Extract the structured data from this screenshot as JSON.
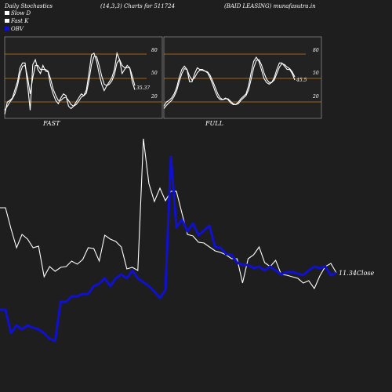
{
  "header": {
    "left": "Daily Stochastics",
    "mid": "(14,3,3) Charts for 511724",
    "right": "(BAID LEASING) munafasutra.in"
  },
  "legend": [
    {
      "label": "Slow  D",
      "color": "#ffffff"
    },
    {
      "label": "Fast K",
      "color": "#ffffff"
    },
    {
      "label": "OBV",
      "color": "#1010d0"
    }
  ],
  "panels": {
    "fast": {
      "label": "FAST",
      "value_label": "35.37"
    },
    "full": {
      "label": "FULL",
      "value_label": "45.5"
    }
  },
  "main": {
    "close_label": "11.34Close"
  },
  "colors": {
    "background": "#1e1e1e",
    "panel_bg": "#222222",
    "level_line": "#c87a14",
    "price_line": "#ffffff",
    "obv_line": "#1010d0"
  },
  "chart_data": [
    {
      "type": "line",
      "name": "FAST",
      "ylim": [
        0,
        100
      ],
      "yticks": [
        20,
        50,
        80
      ],
      "series": [
        {
          "name": "Fast K",
          "values": [
            5,
            20,
            22,
            25,
            35,
            45,
            62,
            68,
            68,
            40,
            10,
            66,
            72,
            60,
            55,
            65,
            58,
            57,
            40,
            30,
            22,
            18,
            25,
            30,
            28,
            15,
            12,
            15,
            20,
            25,
            30,
            28,
            35,
            55,
            78,
            80,
            70,
            55,
            42,
            34,
            40,
            45,
            50,
            60,
            80,
            72,
            55,
            60,
            65,
            62,
            45,
            35
          ]
        },
        {
          "name": "Slow D",
          "values": [
            10,
            15,
            20,
            24,
            30,
            40,
            55,
            64,
            65,
            50,
            30,
            50,
            65,
            65,
            60,
            60,
            60,
            58,
            48,
            36,
            28,
            22,
            22,
            25,
            26,
            22,
            17,
            15,
            17,
            21,
            26,
            28,
            31,
            46,
            66,
            76,
            76,
            65,
            52,
            42,
            40,
            42,
            46,
            54,
            68,
            72,
            65,
            62,
            62,
            62,
            52,
            40
          ]
        }
      ]
    },
    {
      "type": "line",
      "name": "FULL",
      "ylim": [
        0,
        100
      ],
      "yticks": [
        20,
        50,
        80
      ],
      "series": [
        {
          "name": "Fast K",
          "values": [
            15,
            20,
            22,
            25,
            30,
            38,
            50,
            60,
            64,
            60,
            45,
            45,
            55,
            62,
            60,
            60,
            58,
            56,
            50,
            42,
            33,
            26,
            23,
            23,
            25,
            23,
            19,
            17,
            17,
            20,
            24,
            27,
            30,
            40,
            56,
            70,
            75,
            70,
            60,
            49,
            44,
            42,
            44,
            50,
            60,
            68,
            68,
            64,
            60,
            60,
            55,
            47
          ]
        },
        {
          "name": "Slow D",
          "values": [
            12,
            16,
            19,
            22,
            27,
            34,
            45,
            55,
            61,
            60,
            52,
            47,
            50,
            56,
            59,
            59,
            58,
            57,
            53,
            46,
            38,
            30,
            25,
            23,
            24,
            24,
            21,
            18,
            17,
            18,
            22,
            25,
            28,
            35,
            48,
            62,
            71,
            72,
            66,
            56,
            48,
            44,
            44,
            47,
            55,
            63,
            67,
            66,
            63,
            61,
            57,
            51
          ]
        }
      ]
    },
    {
      "type": "line",
      "name": "Price / OBV",
      "series": [
        {
          "name": "Price",
          "values": [
            265,
            265,
            292,
            316,
            299,
            305,
            316,
            314,
            353,
            340,
            346,
            341,
            340,
            333,
            337,
            331,
            316,
            317,
            333,
            300,
            305,
            308,
            315,
            343,
            341,
            345,
            177,
            234,
            257,
            240,
            256,
            244,
            244,
            272,
            299,
            301,
            309,
            310,
            315,
            320,
            322,
            325,
            330,
            330,
            361,
            330,
            325,
            315,
            335,
            340,
            332,
            350,
            351,
            353,
            355,
            361,
            358,
            368,
            352,
            340,
            336,
            348
          ]
        },
        {
          "name": "OBV",
          "values": [
            395,
            395,
            425,
            415,
            420,
            415,
            418,
            420,
            425,
            432,
            435,
            385,
            385,
            378,
            378,
            375,
            375,
            365,
            362,
            355,
            365,
            355,
            350,
            355,
            345,
            355,
            360,
            365,
            372,
            380,
            370,
            200,
            290,
            280,
            295,
            285,
            300,
            294,
            288,
            315,
            316,
            324,
            325,
            335,
            338,
            338,
            342,
            340,
            345,
            340,
            345,
            350,
            347,
            347,
            349,
            351,
            345,
            340,
            342,
            340,
            351,
            348
          ]
        }
      ]
    }
  ]
}
